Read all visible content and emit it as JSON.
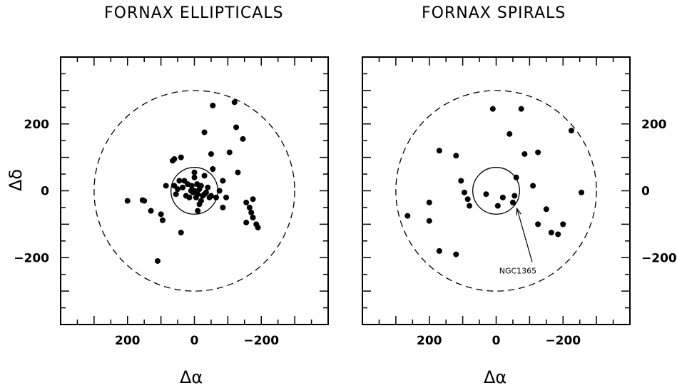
{
  "chart_data": [
    {
      "type": "scatter",
      "title": "FORNAX  ELLIPTICALS",
      "xlabel": "Δα",
      "ylabel": "Δδ",
      "xlim": [
        400,
        -400
      ],
      "ylim": [
        -400,
        400
      ],
      "x_ticks": [
        200,
        0,
        -200
      ],
      "x_tick_labels": [
        "200",
        "0",
        "−200"
      ],
      "y_ticks": [
        200,
        0,
        -200
      ],
      "y_tick_labels": [
        "200",
        "0",
        "−200"
      ],
      "grid": false,
      "circles": [
        {
          "center": [
            0,
            0
          ],
          "radius": 70,
          "style": "solid"
        },
        {
          "center": [
            0,
            0
          ],
          "radius": 300,
          "style": "dashed"
        }
      ],
      "points": [
        [
          200,
          -30
        ],
        [
          155,
          -28
        ],
        [
          150,
          -30
        ],
        [
          130,
          -60
        ],
        [
          110,
          -210
        ],
        [
          100,
          -70
        ],
        [
          95,
          -88
        ],
        [
          85,
          15
        ],
        [
          65,
          90
        ],
        [
          60,
          95
        ],
        [
          60,
          15
        ],
        [
          55,
          -10
        ],
        [
          50,
          5
        ],
        [
          45,
          30
        ],
        [
          40,
          100
        ],
        [
          40,
          -125
        ],
        [
          35,
          10
        ],
        [
          30,
          30
        ],
        [
          25,
          -15
        ],
        [
          20,
          20
        ],
        [
          15,
          -20
        ],
        [
          10,
          0
        ],
        [
          8,
          15
        ],
        [
          5,
          -5
        ],
        [
          0,
          55
        ],
        [
          0,
          40
        ],
        [
          0,
          0
        ],
        [
          -5,
          -20
        ],
        [
          -8,
          20
        ],
        [
          -10,
          -10
        ],
        [
          -15,
          5
        ],
        [
          -15,
          -40
        ],
        [
          -20,
          15
        ],
        [
          -25,
          -15
        ],
        [
          -30,
          45
        ],
        [
          -30,
          175
        ],
        [
          -35,
          -5
        ],
        [
          -30,
          -10
        ],
        [
          -40,
          10
        ],
        [
          -45,
          -20
        ],
        [
          -50,
          110
        ],
        [
          -55,
          65
        ],
        [
          -50,
          -15
        ],
        [
          -55,
          255
        ],
        [
          -65,
          -20
        ],
        [
          -75,
          0
        ],
        [
          -85,
          30
        ],
        [
          -85,
          -50
        ],
        [
          -95,
          -20
        ],
        [
          -105,
          115
        ],
        [
          -130,
          55
        ],
        [
          -120,
          265
        ],
        [
          -125,
          190
        ],
        [
          -145,
          155
        ],
        [
          -155,
          -35
        ],
        [
          -155,
          -95
        ],
        [
          -165,
          -50
        ],
        [
          -170,
          -65
        ],
        [
          -175,
          -25
        ],
        [
          -175,
          -80
        ],
        [
          -185,
          -100
        ],
        [
          -190,
          -110
        ],
        [
          -20,
          -30
        ],
        [
          -10,
          -60
        ]
      ]
    },
    {
      "type": "scatter",
      "title": "FORNAX  SPIRALS",
      "xlabel": "Δα",
      "ylabel": "",
      "xlim": [
        400,
        -400
      ],
      "ylim": [
        -400,
        400
      ],
      "x_ticks": [
        200,
        0,
        -200
      ],
      "x_tick_labels": [
        "200",
        "0",
        "−200"
      ],
      "y_ticks": [
        200,
        0,
        -200
      ],
      "y_tick_labels": [
        "200",
        "0",
        "−200"
      ],
      "grid": false,
      "circles": [
        {
          "center": [
            0,
            0
          ],
          "radius": 70,
          "style": "solid"
        },
        {
          "center": [
            0,
            0
          ],
          "radius": 300,
          "style": "dashed"
        }
      ],
      "points": [
        [
          265,
          -75
        ],
        [
          200,
          -35
        ],
        [
          200,
          -90
        ],
        [
          170,
          120
        ],
        [
          170,
          -180
        ],
        [
          120,
          105
        ],
        [
          120,
          -190
        ],
        [
          105,
          30
        ],
        [
          95,
          -5
        ],
        [
          85,
          -25
        ],
        [
          80,
          -45
        ],
        [
          30,
          -10
        ],
        [
          10,
          245
        ],
        [
          -5,
          -45
        ],
        [
          -20,
          -20
        ],
        [
          -40,
          170
        ],
        [
          -50,
          -35
        ],
        [
          -55,
          -15
        ],
        [
          -60,
          40
        ],
        [
          -75,
          245
        ],
        [
          -85,
          110
        ],
        [
          -110,
          15
        ],
        [
          -125,
          115
        ],
        [
          -125,
          -100
        ],
        [
          -150,
          -55
        ],
        [
          -165,
          -125
        ],
        [
          -185,
          -130
        ],
        [
          -200,
          -100
        ],
        [
          -225,
          180
        ],
        [
          -255,
          -5
        ]
      ],
      "annotations": [
        {
          "text": "NGC1365",
          "target": [
            -60,
            -40
          ],
          "label_at": [
            -65,
            -230
          ]
        }
      ]
    }
  ]
}
